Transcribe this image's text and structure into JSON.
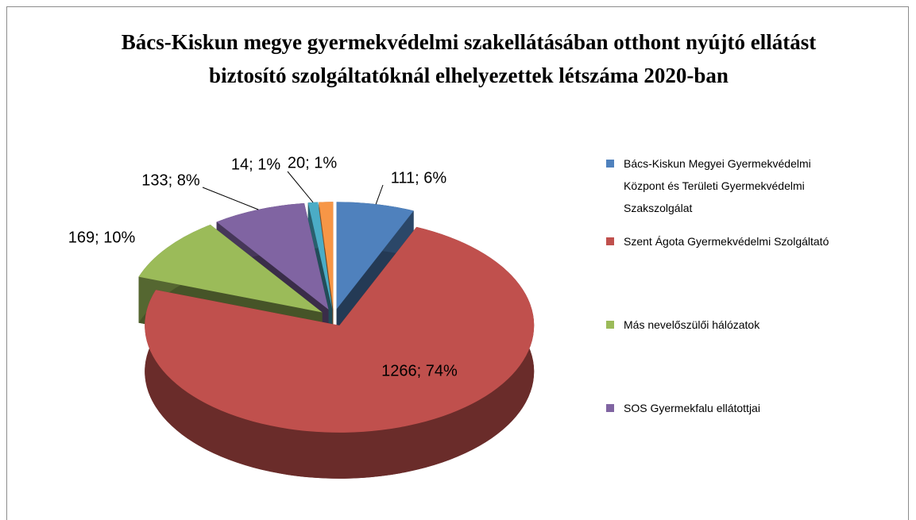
{
  "chart_data": {
    "type": "pie3d",
    "title": "Bács-Kiskun megye gyermekvédelmi szakellátásában otthont nyújtó ellátást biztosító szolgáltatóknál elhelyezettek létszáma 2020-ban",
    "categories": [
      "Bács-Kiskun Megyei Gyermekvédelmi Központ és Területi Gyermekvédelmi Szakszolgálat",
      "Szent Ágota Gyermekvédelmi Szolgáltató",
      "Más nevelőszülői hálózatok",
      "SOS Gyermekfalu ellátottjai",
      null,
      null
    ],
    "values": [
      111,
      1266,
      169,
      133,
      14,
      20
    ],
    "value_labels": [
      "111; 6%",
      "1266; 74%",
      "169; 10%",
      "133; 8%",
      "14; 1%",
      "20; 1%"
    ],
    "colors": [
      "#4f81bd",
      "#c0504d",
      "#9bbb59",
      "#8064a2",
      "#4bacc6",
      "#f79646"
    ],
    "legend": "right"
  }
}
